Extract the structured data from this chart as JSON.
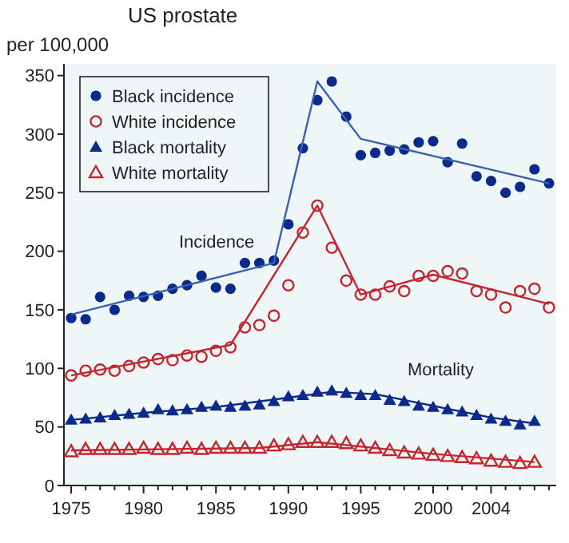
{
  "chart_data": {
    "type": "scatter",
    "title": "US prostate",
    "ylabel": "per 100,000",
    "xlim": [
      1974.5,
      2008.5
    ],
    "ylim": [
      0,
      360
    ],
    "xticks": [
      1975,
      {
        "value": 1976,
        "label": null
      },
      {
        "value": 1977,
        "label": null
      },
      {
        "value": 1978,
        "label": null
      },
      {
        "value": 1979,
        "label": null
      },
      1980,
      {
        "value": 1981,
        "label": null
      },
      {
        "value": 1982,
        "label": null
      },
      {
        "value": 1983,
        "label": null
      },
      {
        "value": 1984,
        "label": null
      },
      1985,
      {
        "value": 1986,
        "label": null
      },
      {
        "value": 1987,
        "label": null
      },
      {
        "value": 1988,
        "label": null
      },
      {
        "value": 1989,
        "label": null
      },
      1990,
      {
        "value": 1991,
        "label": null
      },
      {
        "value": 1992,
        "label": null
      },
      {
        "value": 1993,
        "label": null
      },
      {
        "value": 1994,
        "label": null
      },
      1995,
      {
        "value": 1996,
        "label": null
      },
      {
        "value": 1997,
        "label": null
      },
      {
        "value": 1998,
        "label": null
      },
      {
        "value": 1999,
        "label": null
      },
      2000,
      {
        "value": 2001,
        "label": null
      },
      {
        "value": 2002,
        "label": null
      },
      {
        "value": 2003,
        "label": null
      },
      2004,
      {
        "value": 2005,
        "label": null
      },
      {
        "value": 2006,
        "label": null
      },
      {
        "value": 2007,
        "label": null
      },
      {
        "value": 2008,
        "label": null
      }
    ],
    "yticks": [
      0,
      50,
      100,
      150,
      200,
      250,
      300,
      350
    ],
    "grid": false,
    "legend": "top left",
    "annotations": [
      "Incidence",
      "Mortality"
    ],
    "series": [
      {
        "name": "Black incidence",
        "marker": "circle",
        "color": "#0b2a8c",
        "x": [
          1975,
          1976,
          1977,
          1978,
          1979,
          1980,
          1981,
          1982,
          1983,
          1984,
          1985,
          1986,
          1987,
          1988,
          1989,
          1990,
          1991,
          1992,
          1993,
          1994,
          1995,
          1996,
          1997,
          1998,
          1999,
          2000,
          2001,
          2002,
          2003,
          2004,
          2005,
          2006,
          2007,
          2008
        ],
        "values": [
          143,
          142,
          161,
          150,
          162,
          161,
          162,
          168,
          171,
          179,
          169,
          168,
          190,
          190,
          192,
          223,
          288,
          329,
          345,
          315,
          282,
          284,
          286,
          287,
          293,
          294,
          276,
          292,
          264,
          260,
          250,
          255,
          270,
          258
        ]
      },
      {
        "name": "White incidence",
        "marker": "circle",
        "color": "#c4262e",
        "x": [
          1975,
          1976,
          1977,
          1978,
          1979,
          1980,
          1981,
          1982,
          1983,
          1984,
          1985,
          1986,
          1987,
          1988,
          1989,
          1990,
          1991,
          1992,
          1993,
          1994,
          1995,
          1996,
          1997,
          1998,
          1999,
          2000,
          2001,
          2002,
          2003,
          2004,
          2005,
          2006,
          2007,
          2008
        ],
        "values": [
          94,
          98,
          99,
          98,
          102,
          105,
          108,
          107,
          111,
          110,
          115,
          118,
          135,
          137,
          145,
          171,
          216,
          239,
          203,
          175,
          163,
          163,
          170,
          166,
          179,
          179,
          183,
          181,
          166,
          163,
          152,
          166,
          168,
          152
        ]
      },
      {
        "name": "Black mortality",
        "marker": "triangle",
        "color": "#0b2a8c",
        "x": [
          1975,
          1976,
          1977,
          1978,
          1979,
          1980,
          1981,
          1982,
          1983,
          1984,
          1985,
          1986,
          1987,
          1988,
          1989,
          1990,
          1991,
          1992,
          1993,
          1994,
          1995,
          1996,
          1997,
          1998,
          1999,
          2000,
          2001,
          2002,
          2003,
          2004,
          2005,
          2006,
          2007
        ],
        "values": [
          56,
          57,
          58,
          60,
          61,
          62,
          65,
          64,
          65,
          67,
          68,
          67,
          68,
          69,
          72,
          76,
          77,
          80,
          81,
          79,
          77,
          77,
          73,
          72,
          68,
          67,
          65,
          63,
          60,
          57,
          55,
          52,
          55
        ]
      },
      {
        "name": "White mortality",
        "marker": "triangle",
        "color": "#c4262e",
        "x": [
          1975,
          1976,
          1977,
          1978,
          1979,
          1980,
          1981,
          1982,
          1983,
          1984,
          1985,
          1986,
          1987,
          1988,
          1989,
          1990,
          1991,
          1992,
          1993,
          1994,
          1995,
          1996,
          1997,
          1998,
          1999,
          2000,
          2001,
          2002,
          2003,
          2004,
          2005,
          2006,
          2007
        ],
        "values": [
          29,
          31,
          31,
          31,
          31,
          32,
          31,
          31,
          32,
          31,
          32,
          32,
          32,
          32,
          34,
          35,
          37,
          37,
          37,
          36,
          34,
          32,
          30,
          28,
          27,
          26,
          25,
          24,
          23,
          21,
          20,
          19,
          20
        ]
      },
      {
        "type": "line",
        "color": "#3b5fb2",
        "x": [
          1975,
          1989,
          1992,
          1995,
          2008
        ],
        "values": [
          146,
          190,
          345,
          296,
          258
        ]
      },
      {
        "type": "line",
        "color": "#c4262e",
        "x": [
          1975,
          1986,
          1992,
          1995,
          2000,
          2008
        ],
        "values": [
          94,
          120,
          239,
          163,
          180,
          155
        ]
      },
      {
        "type": "line",
        "color": "#0b2a8c",
        "x": [
          1975,
          1980,
          1985,
          1990,
          1993,
          1996,
          2000,
          2004,
          2007
        ],
        "values": [
          56,
          62,
          67,
          75,
          80,
          78,
          68,
          58,
          53
        ]
      },
      {
        "type": "line",
        "color": "#c4262e",
        "x": [
          1975,
          1988,
          1992,
          2000,
          2007
        ],
        "values": [
          30,
          32,
          37,
          27,
          20
        ]
      }
    ]
  }
}
